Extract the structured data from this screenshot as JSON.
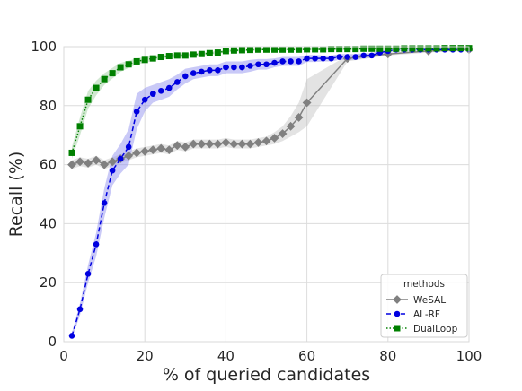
{
  "chart_data": {
    "type": "line",
    "xlabel": "% of queried candidates",
    "ylabel": "Recall (%)",
    "xlim": [
      0,
      100
    ],
    "ylim": [
      0,
      100
    ],
    "xticks": [
      0,
      20,
      40,
      60,
      80,
      100
    ],
    "yticks": [
      0,
      20,
      40,
      60,
      80,
      100
    ],
    "grid": true,
    "legend": {
      "title": "methods",
      "position": "lower-right"
    },
    "series": [
      {
        "name": "WeSAL",
        "color": "#808080",
        "band": "#c0c0c0",
        "marker": "diamond",
        "linestyle": "solid",
        "x": [
          2,
          4,
          6,
          8,
          10,
          12,
          14,
          16,
          18,
          20,
          22,
          24,
          26,
          28,
          30,
          32,
          34,
          36,
          38,
          40,
          42,
          44,
          46,
          48,
          50,
          52,
          54,
          56,
          58,
          60,
          70,
          80,
          90,
          100
        ],
        "y": [
          60,
          61,
          60.5,
          61.5,
          60,
          61,
          62,
          63,
          64,
          64.5,
          65,
          65.5,
          65,
          66.5,
          66,
          67,
          67,
          67,
          67,
          67.5,
          67,
          67,
          67,
          67.5,
          68,
          69,
          70.5,
          73,
          76,
          81,
          96,
          97.5,
          98.5,
          99
        ],
        "err": [
          1.5,
          1.5,
          1.5,
          1.5,
          1.5,
          1.5,
          1.5,
          1.5,
          1.5,
          1.5,
          1.5,
          1.5,
          1.5,
          1.5,
          1.5,
          1.5,
          1.5,
          1.5,
          1.5,
          1.5,
          1.5,
          1.5,
          1.5,
          1.5,
          1.5,
          2,
          2.5,
          3.5,
          5,
          8,
          1,
          0.5,
          0.5,
          0.3
        ]
      },
      {
        "name": "AL-RF",
        "color": "#0000e0",
        "band": "#8888ee",
        "marker": "circle",
        "linestyle": "dashed",
        "x": [
          2,
          4,
          6,
          8,
          10,
          12,
          14,
          16,
          18,
          20,
          22,
          24,
          26,
          28,
          30,
          32,
          34,
          36,
          38,
          40,
          42,
          44,
          46,
          48,
          50,
          52,
          54,
          56,
          58,
          60,
          62,
          64,
          66,
          68,
          70,
          72,
          74,
          76,
          78,
          80,
          82,
          84,
          86,
          88,
          90,
          92,
          94,
          96,
          98,
          100
        ],
        "y": [
          2,
          11,
          23,
          33,
          47,
          58,
          62,
          66,
          78,
          82,
          84,
          85,
          86,
          88,
          90,
          91,
          91.5,
          92,
          92,
          93,
          93,
          93,
          93.5,
          94,
          94,
          94.5,
          95,
          95,
          95,
          96,
          96,
          96,
          96,
          96.5,
          96.5,
          96.5,
          97,
          97,
          98,
          98.5,
          99,
          99,
          99,
          99,
          99,
          99,
          99,
          99,
          99,
          99.2
        ],
        "err": [
          1,
          2,
          3,
          4,
          5,
          5,
          5,
          6,
          6,
          4,
          3,
          3,
          3,
          2.5,
          2.5,
          2,
          2,
          2,
          2,
          2,
          2,
          2,
          2,
          1.8,
          1.8,
          1.5,
          1.5,
          1.5,
          1.5,
          1.2,
          1.2,
          1,
          1,
          1,
          1,
          1,
          0.8,
          0.8,
          0.8,
          0.6,
          0.5,
          0.5,
          0.4,
          0.4,
          0.3,
          0.3,
          0.3,
          0.3,
          0.3,
          0.3
        ]
      },
      {
        "name": "DualLoop",
        "color": "#008000",
        "band": "#99cc99",
        "marker": "square",
        "linestyle": "dotted",
        "x": [
          2,
          4,
          6,
          8,
          10,
          12,
          14,
          16,
          18,
          20,
          22,
          24,
          26,
          28,
          30,
          32,
          34,
          36,
          38,
          40,
          42,
          44,
          46,
          48,
          50,
          52,
          54,
          56,
          58,
          60,
          62,
          64,
          66,
          68,
          70,
          72,
          74,
          76,
          78,
          80,
          82,
          84,
          86,
          88,
          90,
          92,
          94,
          96,
          98,
          100
        ],
        "y": [
          64,
          73,
          82,
          86,
          89,
          91,
          93,
          94,
          95,
          95.5,
          96,
          96.5,
          96.8,
          97,
          97,
          97.3,
          97.5,
          97.8,
          98,
          98.5,
          98.7,
          98.8,
          98.9,
          99,
          99,
          99,
          99,
          99,
          99,
          99.1,
          99.1,
          99.1,
          99.2,
          99.2,
          99.2,
          99.2,
          99.3,
          99.3,
          99.3,
          99.3,
          99.3,
          99.4,
          99.4,
          99.4,
          99.4,
          99.4,
          99.5,
          99.5,
          99.5,
          99.5
        ],
        "err": [
          2,
          3,
          3,
          2.5,
          2,
          1.8,
          1.5,
          1.2,
          1,
          1,
          0.8,
          0.8,
          0.7,
          0.6,
          0.6,
          0.5,
          0.5,
          0.5,
          0.5,
          0.4,
          0.4,
          0.4,
          0.3,
          0.3,
          0.3,
          0.3,
          0.3,
          0.3,
          0.3,
          0.3,
          0.3,
          0.3,
          0.3,
          0.3,
          0.3,
          0.3,
          0.3,
          0.3,
          0.3,
          0.3,
          0.3,
          0.3,
          0.3,
          0.3,
          0.3,
          0.3,
          0.3,
          0.3,
          0.3,
          0.3
        ]
      }
    ]
  }
}
